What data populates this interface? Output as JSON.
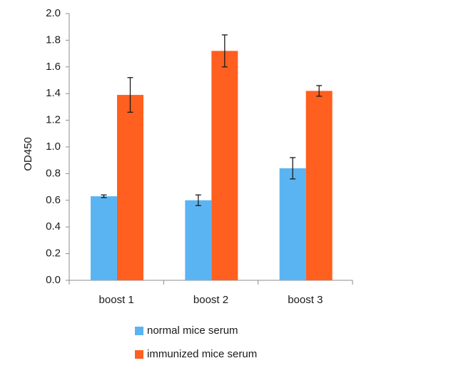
{
  "chart_data": {
    "type": "bar",
    "title": "",
    "xlabel": "",
    "ylabel": "OD450",
    "ylim": [
      0,
      2.0
    ],
    "ytick_step": 0.2,
    "ytick_labels": [
      "0.0",
      "0.2",
      "0.4",
      "0.6",
      "0.8",
      "1.0",
      "1.2",
      "1.4",
      "1.6",
      "1.8",
      "2.0"
    ],
    "categories": [
      "boost 1",
      "boost 2",
      "boost 3"
    ],
    "grid": false,
    "legend_position": "bottom",
    "series": [
      {
        "name": "normal mice serum",
        "color": "#5bb4f2",
        "values": [
          0.63,
          0.6,
          0.84
        ],
        "errors": [
          0.01,
          0.04,
          0.08
        ]
      },
      {
        "name": "immunized mice serum",
        "color": "#ff5f1f",
        "values": [
          1.39,
          1.72,
          1.42
        ],
        "errors": [
          0.13,
          0.12,
          0.04
        ]
      }
    ]
  }
}
